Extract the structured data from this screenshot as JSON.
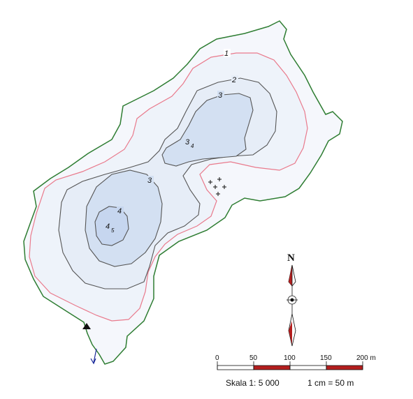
{
  "map": {
    "colors": {
      "shoreline": "#2e7d32",
      "contour_1": "#e97a8c",
      "contour": "#555555",
      "water_shallow": "#f5f7fc",
      "water_mid": "#e6edf7",
      "water_deep": "#d3e0f2",
      "water_deepest": "#c6d6ef",
      "scale_red": "#b41e1e",
      "inflow_arrow": "#1a2a9a"
    },
    "contour_labels": {
      "c1": "1",
      "c2": "2",
      "c3_north": "3",
      "c3_south": "3",
      "c4": "4",
      "deep_north_main": "3",
      "deep_north_sub": "4",
      "deep_south_main": "4",
      "deep_south_sub": "5"
    },
    "symbols": {
      "vegetation": "plus-markers",
      "survey_point": "black-triangle",
      "inflow": "blue-arrow"
    }
  },
  "compass": {
    "north_label": "N"
  },
  "scale_bar": {
    "ticks": [
      "0",
      "50",
      "100",
      "150",
      "200 m"
    ],
    "scale_text": "Skala 1: 5 000",
    "equivalence_text": "1 cm = 50 m"
  }
}
